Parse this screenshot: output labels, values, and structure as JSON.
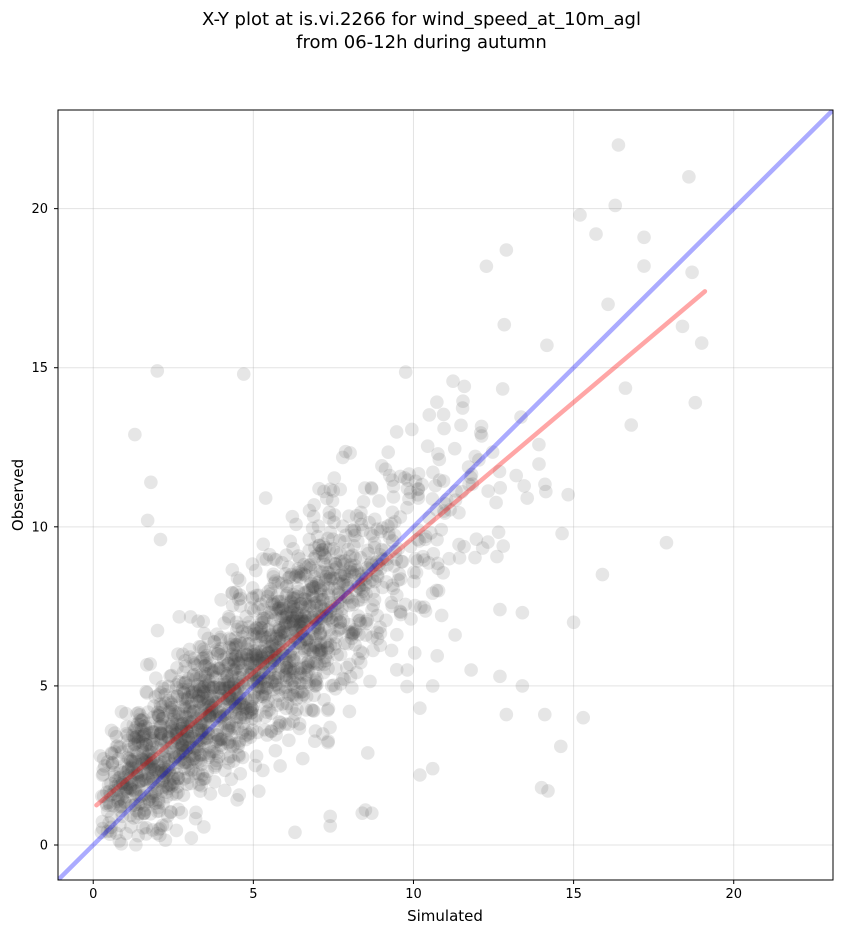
{
  "chart_data": {
    "type": "scatter",
    "title_line1": "X-Y plot at is.vi.2266 for wind_speed_at_10m_agl",
    "title_line2": "from 06-12h during autumn",
    "xlabel": "Simulated",
    "ylabel": "Observed",
    "xlim": [
      -1.1,
      23.1
    ],
    "ylim": [
      -1.1,
      23.1
    ],
    "xticks": [
      0,
      5,
      10,
      15,
      20
    ],
    "yticks": [
      0,
      5,
      10,
      15,
      20
    ],
    "grid": true,
    "points": {
      "n": 1900,
      "color": "#404040",
      "distribution": "observed ≈ simulated with scatter; simulated range ~0 to ~19, observed range ~0 to ~22",
      "outliers": [
        [
          1.3,
          12.9
        ],
        [
          2.0,
          14.9
        ],
        [
          4.7,
          14.8
        ],
        [
          1.7,
          10.2
        ],
        [
          1.8,
          11.4
        ],
        [
          2.1,
          9.6
        ],
        [
          16.4,
          22.0
        ],
        [
          18.6,
          21.0
        ],
        [
          16.3,
          20.1
        ],
        [
          15.2,
          19.8
        ],
        [
          15.7,
          19.2
        ],
        [
          17.2,
          19.1
        ],
        [
          12.9,
          18.7
        ],
        [
          18.7,
          18.0
        ],
        [
          17.9,
          9.5
        ],
        [
          15.9,
          8.5
        ],
        [
          15.0,
          7.0
        ],
        [
          15.3,
          4.0
        ],
        [
          13.4,
          5.0
        ],
        [
          14.1,
          4.1
        ],
        [
          14.6,
          3.1
        ],
        [
          14.0,
          1.8
        ],
        [
          14.2,
          1.7
        ],
        [
          12.9,
          4.1
        ],
        [
          12.7,
          5.3
        ],
        [
          13.4,
          7.3
        ],
        [
          12.7,
          7.4
        ],
        [
          10.6,
          2.4
        ],
        [
          10.2,
          2.2
        ],
        [
          10.6,
          5.0
        ],
        [
          10.2,
          4.3
        ],
        [
          8.7,
          1.0
        ],
        [
          8.5,
          1.1
        ],
        [
          8.4,
          1.0
        ],
        [
          7.4,
          0.9
        ],
        [
          7.4,
          0.6
        ],
        [
          6.3,
          0.4
        ],
        [
          11.8,
          5.5
        ],
        [
          11.3,
          6.6
        ],
        [
          18.4,
          16.3
        ],
        [
          18.8,
          13.9
        ],
        [
          16.8,
          13.2
        ]
      ]
    },
    "lines": [
      {
        "name": "",
        "color": "#ff0000",
        "opacity": 0.35,
        "x": [
          0.1,
          19.1
        ],
        "y": [
          1.25,
          17.4
        ]
      },
      {
        "name": "",
        "color": "#0000ff",
        "opacity": 0.33,
        "x": [
          -1.1,
          23.1
        ],
        "y": [
          -1.1,
          23.1
        ]
      }
    ]
  }
}
